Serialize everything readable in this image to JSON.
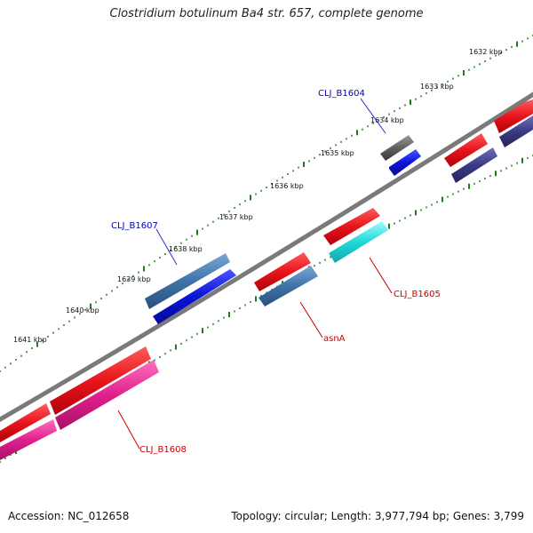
{
  "title": "Clostridium botulinum Ba4 str. 657, complete genome",
  "footer": {
    "accession": "Accession: NC_012658",
    "summary": "Topology: circular; Length: 3,977,794 bp; Genes: 3,799"
  },
  "ticks": [
    {
      "label": "1632 kbp"
    },
    {
      "label": "1633 kbp"
    },
    {
      "label": "1634 kbp"
    },
    {
      "label": "1635 kbp"
    },
    {
      "label": "1636 kbp"
    },
    {
      "label": "1637 kbp"
    },
    {
      "label": "1638 kbp"
    },
    {
      "label": "1639 kbp"
    },
    {
      "label": "1640 kbp"
    },
    {
      "label": "1641 kbp"
    }
  ],
  "gene_labels": [
    {
      "name": "CLJ_B1604",
      "color": "#0000c0"
    },
    {
      "name": "CLJ_B1607",
      "color": "#0000c0"
    },
    {
      "name": "CLJ_B1605",
      "color": "#cc0000"
    },
    {
      "name": "asnA",
      "color": "#cc0000"
    },
    {
      "name": "CLJ_B1608",
      "color": "#cc0000"
    }
  ],
  "colors": {
    "backbone": "#7a7a7a",
    "tick": "#1d7a1d",
    "red": "#e8141c",
    "steel_blue": "#3f74a8",
    "blue": "#0a14d6",
    "cyan": "#1fd8d8",
    "grey": "#606060",
    "slate": "#3a3a85",
    "magenta": "#e0208c"
  }
}
